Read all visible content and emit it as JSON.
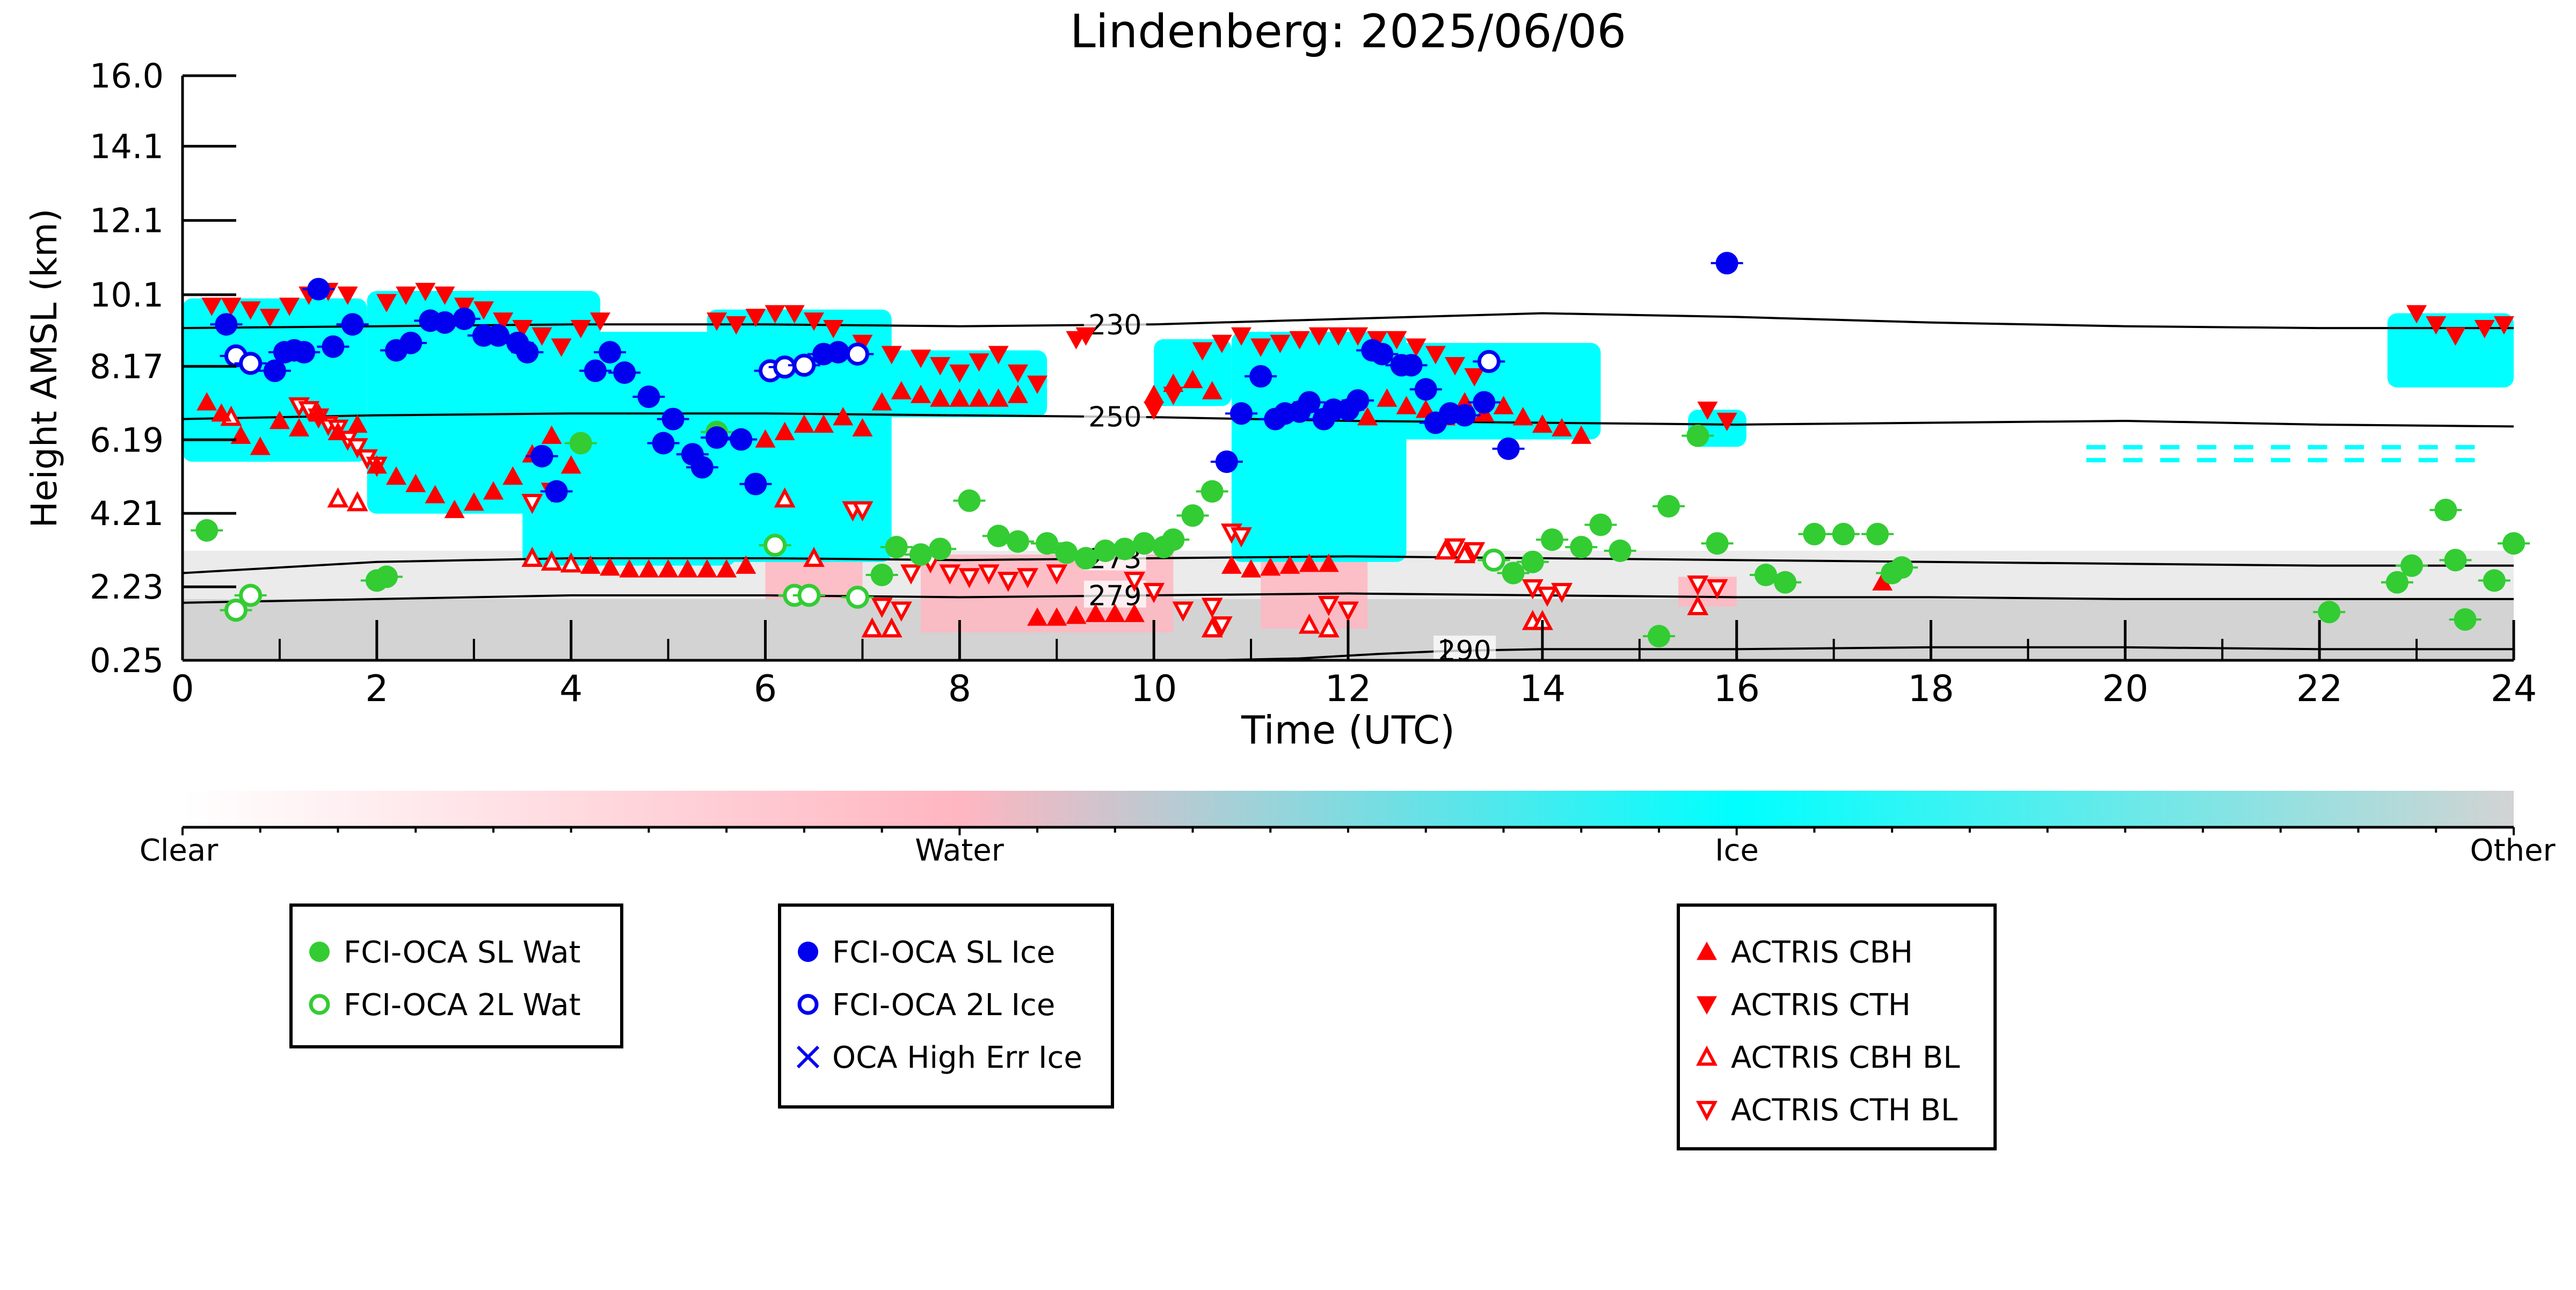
{
  "chart_data": {
    "type": "scatter",
    "title": "Lindenberg: 2025/06/06",
    "xlabel": "Time (UTC)",
    "ylabel": "Height AMSL (km)",
    "xlim": [
      0,
      24
    ],
    "ylim": [
      0.25,
      16.0
    ],
    "x_ticks": [
      0,
      2,
      4,
      6,
      8,
      10,
      12,
      14,
      16,
      18,
      20,
      22,
      24
    ],
    "y_ticks": [
      "0.25",
      "2.23",
      "4.21",
      "6.19",
      "8.17",
      "10.1",
      "12.1",
      "14.1",
      "16.0"
    ],
    "colorbar": {
      "labels": [
        "Clear",
        "Water",
        "Ice",
        "Other"
      ],
      "colors": [
        "#ffffff",
        "#ffb6c1",
        "#00ffff",
        "#d3d3d3"
      ]
    },
    "contours": [
      {
        "label": "230",
        "label_x": 9.6,
        "x": [
          0,
          2,
          4,
          6,
          8,
          10,
          12,
          14,
          16,
          18,
          20,
          22,
          24
        ],
        "y": [
          9.2,
          9.25,
          9.3,
          9.3,
          9.25,
          9.3,
          9.45,
          9.6,
          9.5,
          9.35,
          9.25,
          9.2,
          9.2
        ]
      },
      {
        "label": "250",
        "label_x": 9.6,
        "x": [
          0,
          2,
          4,
          6,
          8,
          10,
          12,
          14,
          16,
          18,
          20,
          22,
          24
        ],
        "y": [
          6.75,
          6.85,
          6.9,
          6.9,
          6.85,
          6.8,
          6.7,
          6.65,
          6.6,
          6.65,
          6.7,
          6.6,
          6.55
        ]
      },
      {
        "label": "273",
        "label_x": 9.6,
        "x": [
          0,
          2,
          4,
          6,
          8,
          10,
          12,
          14,
          16,
          18,
          20,
          22,
          24
        ],
        "y": [
          2.6,
          2.9,
          3.0,
          3.0,
          2.95,
          3.0,
          3.05,
          3.0,
          2.95,
          2.9,
          2.85,
          2.8,
          2.8
        ]
      },
      {
        "label": "279",
        "label_x": 9.6,
        "x": [
          0,
          2,
          4,
          6,
          8,
          10,
          12,
          14,
          16,
          18,
          20,
          22,
          24
        ],
        "y": [
          1.8,
          1.9,
          2.0,
          2.0,
          1.95,
          2.0,
          2.05,
          2.0,
          1.95,
          1.95,
          1.9,
          1.9,
          1.9
        ]
      },
      {
        "label": "290",
        "label_x": 13.2,
        "x": [
          10.6,
          11.5,
          12.3,
          13.0,
          14.0,
          16.0,
          18.0,
          20.0,
          22.0,
          24.0
        ],
        "y": [
          0.25,
          0.3,
          0.42,
          0.5,
          0.55,
          0.55,
          0.6,
          0.6,
          0.55,
          0.55
        ]
      }
    ],
    "series": [
      {
        "name": "FCI-OCA SL Wat",
        "marker": "filled-circle",
        "color": "#33cc33",
        "x": [
          0.25,
          2.0,
          2.1,
          4.1,
          5.5,
          7.2,
          7.35,
          7.6,
          7.8,
          8.1,
          8.4,
          8.6,
          8.9,
          9.1,
          9.3,
          9.5,
          9.7,
          9.9,
          10.1,
          10.2,
          10.4,
          10.6,
          13.7,
          13.9,
          14.1,
          14.4,
          14.6,
          14.8,
          15.2,
          15.3,
          15.6,
          15.8,
          16.3,
          16.5,
          16.8,
          17.1,
          17.45,
          17.6,
          17.7,
          22.1,
          22.8,
          22.95,
          23.3,
          23.5,
          23.4,
          23.8,
          24.0
        ],
        "y": [
          3.75,
          2.4,
          2.5,
          6.1,
          6.4,
          2.55,
          3.3,
          3.1,
          3.25,
          4.55,
          3.6,
          3.45,
          3.4,
          3.15,
          3.0,
          3.2,
          3.25,
          3.4,
          3.3,
          3.5,
          4.15,
          4.8,
          2.6,
          2.9,
          3.5,
          3.3,
          3.9,
          3.2,
          0.9,
          4.4,
          6.3,
          3.4,
          2.55,
          2.35,
          3.65,
          3.65,
          3.65,
          2.6,
          2.75,
          1.55,
          2.35,
          2.8,
          4.3,
          1.35,
          2.95,
          2.4,
          3.4
        ]
      },
      {
        "name": "FCI-OCA 2L Wat",
        "marker": "open-circle",
        "color": "#33cc33",
        "x": [
          0.55,
          0.7,
          6.1,
          6.3,
          6.45,
          6.95,
          13.5
        ],
        "y": [
          1.6,
          2.0,
          3.35,
          2.0,
          2.0,
          1.95,
          2.95
        ]
      },
      {
        "name": "FCI-OCA SL Ice",
        "marker": "filled-circle",
        "color": "#0000ee",
        "x": [
          0.45,
          0.95,
          1.05,
          1.15,
          1.25,
          1.4,
          1.55,
          1.75,
          2.2,
          2.35,
          2.55,
          2.7,
          2.9,
          3.1,
          3.25,
          3.45,
          3.55,
          3.7,
          3.85,
          4.25,
          4.4,
          4.55,
          4.8,
          4.95,
          5.05,
          5.25,
          5.35,
          5.5,
          5.75,
          5.9,
          6.6,
          6.75,
          10.75,
          10.9,
          11.1,
          11.25,
          11.35,
          11.5,
          11.6,
          11.75,
          11.85,
          12.0,
          12.1,
          12.25,
          12.35,
          12.55,
          12.65,
          12.8,
          12.9,
          13.05,
          13.2,
          13.4,
          13.65,
          15.9
        ],
        "y": [
          9.3,
          8.05,
          8.55,
          8.6,
          8.55,
          10.25,
          8.7,
          9.3,
          8.6,
          8.8,
          9.4,
          9.35,
          9.45,
          9.0,
          9.0,
          8.8,
          8.55,
          5.75,
          4.8,
          8.05,
          8.55,
          8.0,
          7.35,
          6.1,
          6.75,
          5.8,
          5.45,
          6.25,
          6.2,
          5.0,
          8.5,
          8.55,
          5.6,
          6.9,
          7.9,
          6.75,
          6.9,
          6.95,
          7.2,
          6.75,
          7.0,
          7.0,
          7.25,
          8.6,
          8.5,
          8.2,
          8.2,
          7.55,
          6.65,
          6.9,
          6.85,
          7.2,
          5.95,
          10.95
        ]
      },
      {
        "name": "FCI-OCA 2L Ice",
        "marker": "open-circle",
        "color": "#0000ee",
        "x": [
          0.55,
          0.7,
          6.05,
          6.2,
          6.4,
          6.95,
          13.45
        ],
        "y": [
          8.45,
          8.25,
          8.05,
          8.15,
          8.2,
          8.5,
          8.3
        ]
      },
      {
        "name": "OCA High Err Ice",
        "marker": "x",
        "color": "#0000ee",
        "x": [],
        "y": []
      },
      {
        "name": "ACTRIS CBH",
        "marker": "triangle-up",
        "color": "#ff0000",
        "x": [
          0.25,
          0.4,
          0.6,
          0.8,
          1.0,
          1.2,
          1.4,
          1.6,
          1.8,
          2.0,
          2.2,
          2.4,
          2.6,
          2.8,
          3.0,
          3.2,
          3.4,
          3.6,
          3.8,
          4.0,
          4.2,
          4.4,
          4.6,
          4.8,
          5.0,
          5.2,
          5.4,
          5.6,
          5.8,
          6.0,
          6.2,
          6.4,
          6.6,
          6.8,
          7.0,
          7.2,
          7.4,
          7.6,
          7.8,
          8.0,
          8.2,
          8.4,
          8.6,
          8.8,
          9.0,
          9.2,
          9.4,
          9.6,
          9.8,
          10.0,
          10.2,
          10.4,
          10.6,
          10.8,
          11.0,
          11.2,
          11.4,
          11.6,
          11.8,
          12.0,
          12.2,
          12.4,
          12.6,
          12.8,
          13.0,
          13.2,
          13.4,
          13.6,
          13.8,
          14.0,
          14.2,
          14.4,
          17.5
        ],
        "y": [
          7.2,
          6.9,
          6.3,
          6.0,
          6.7,
          6.5,
          6.9,
          6.4,
          6.6,
          5.5,
          5.2,
          5.0,
          4.7,
          4.3,
          4.5,
          4.8,
          5.2,
          5.8,
          6.3,
          5.5,
          2.8,
          2.75,
          2.7,
          2.7,
          2.7,
          2.7,
          2.7,
          2.7,
          2.8,
          6.2,
          6.4,
          6.6,
          6.6,
          6.8,
          6.5,
          7.2,
          7.5,
          7.4,
          7.3,
          7.3,
          7.3,
          7.3,
          7.4,
          1.4,
          1.4,
          1.45,
          1.5,
          1.5,
          1.5,
          7.4,
          7.7,
          7.8,
          7.5,
          2.8,
          2.7,
          2.75,
          2.8,
          2.85,
          2.85,
          7.1,
          6.8,
          7.3,
          7.1,
          7.0,
          6.8,
          7.2,
          6.9,
          7.1,
          6.8,
          6.6,
          6.5,
          6.3,
          2.35
        ]
      },
      {
        "name": "ACTRIS CTH",
        "marker": "triangle-down",
        "color": "#ff0000",
        "x": [
          0.3,
          0.5,
          0.7,
          0.9,
          1.1,
          1.3,
          1.5,
          1.7,
          2.1,
          2.3,
          2.5,
          2.7,
          2.9,
          3.1,
          3.3,
          3.5,
          3.7,
          3.9,
          4.1,
          4.3,
          5.5,
          5.7,
          5.9,
          6.1,
          6.3,
          6.5,
          6.7,
          7.0,
          7.3,
          7.6,
          7.8,
          8.0,
          8.2,
          8.4,
          8.6,
          8.8,
          9.2,
          9.3,
          10.0,
          10.2,
          10.5,
          10.7,
          10.9,
          11.1,
          11.3,
          11.5,
          11.7,
          11.9,
          12.1,
          12.3,
          12.5,
          12.7,
          12.9,
          13.1,
          13.3,
          15.7,
          15.9,
          23.0,
          23.2,
          23.4,
          23.7,
          23.9
        ],
        "y": [
          9.8,
          9.8,
          9.7,
          9.5,
          9.8,
          10.1,
          10.2,
          10.1,
          9.9,
          10.1,
          10.2,
          10.1,
          9.8,
          9.7,
          9.4,
          9.2,
          9.0,
          8.7,
          9.2,
          9.4,
          9.4,
          9.3,
          9.5,
          9.6,
          9.6,
          9.4,
          9.2,
          8.8,
          8.5,
          8.4,
          8.2,
          8.0,
          8.3,
          8.5,
          8.0,
          7.7,
          8.9,
          9.0,
          7.0,
          7.4,
          8.6,
          8.8,
          9.0,
          8.7,
          8.8,
          8.9,
          9.0,
          9.0,
          9.0,
          8.9,
          8.9,
          8.7,
          8.5,
          8.2,
          7.9,
          7.0,
          6.7,
          9.6,
          9.3,
          9.0,
          9.2,
          9.3
        ]
      },
      {
        "name": "ACTRIS CBH BL",
        "marker": "open-triangle-up",
        "color": "#ff0000",
        "x": [
          0.5,
          1.6,
          1.8,
          3.6,
          3.8,
          4.0,
          6.2,
          6.5,
          7.1,
          7.3,
          10.6,
          11.6,
          11.8,
          13.0,
          13.2,
          13.9,
          14.0,
          15.6
        ],
        "y": [
          6.8,
          4.6,
          4.5,
          3.0,
          2.9,
          2.85,
          4.6,
          3.0,
          1.1,
          1.1,
          1.1,
          1.2,
          1.1,
          3.2,
          3.1,
          1.3,
          1.3,
          1.7
        ]
      },
      {
        "name": "ACTRIS CTH BL",
        "marker": "open-triangle-down",
        "color": "#ff0000",
        "x": [
          1.2,
          1.3,
          1.4,
          1.5,
          1.6,
          1.7,
          1.8,
          1.9,
          2.0,
          3.6,
          3.8,
          6.9,
          7.0,
          7.2,
          7.4,
          7.5,
          7.7,
          7.9,
          8.1,
          8.3,
          8.5,
          8.7,
          9.0,
          9.8,
          10.0,
          10.3,
          10.6,
          10.7,
          10.8,
          10.9,
          11.8,
          12.0,
          13.1,
          13.3,
          13.9,
          14.05,
          14.2,
          15.6,
          15.8
        ],
        "y": [
          7.1,
          7.0,
          6.8,
          6.6,
          6.5,
          6.2,
          6.0,
          5.7,
          5.5,
          4.5,
          4.8,
          4.3,
          4.3,
          1.7,
          1.6,
          2.6,
          2.9,
          2.6,
          2.5,
          2.6,
          2.4,
          2.5,
          2.6,
          2.4,
          2.1,
          1.6,
          1.7,
          1.2,
          3.7,
          3.6,
          1.75,
          1.6,
          3.3,
          3.2,
          2.2,
          2.0,
          2.1,
          2.3,
          2.2
        ]
      }
    ],
    "legends": [
      {
        "entries": [
          "FCI-OCA SL Wat",
          "FCI-OCA 2L Wat"
        ]
      },
      {
        "entries": [
          "FCI-OCA SL Ice",
          "FCI-OCA 2L Ice",
          "OCA High Err Ice"
        ]
      },
      {
        "entries": [
          "ACTRIS CBH",
          "ACTRIS CTH",
          "ACTRIS CBH BL",
          "ACTRIS CTH BL"
        ]
      }
    ]
  }
}
